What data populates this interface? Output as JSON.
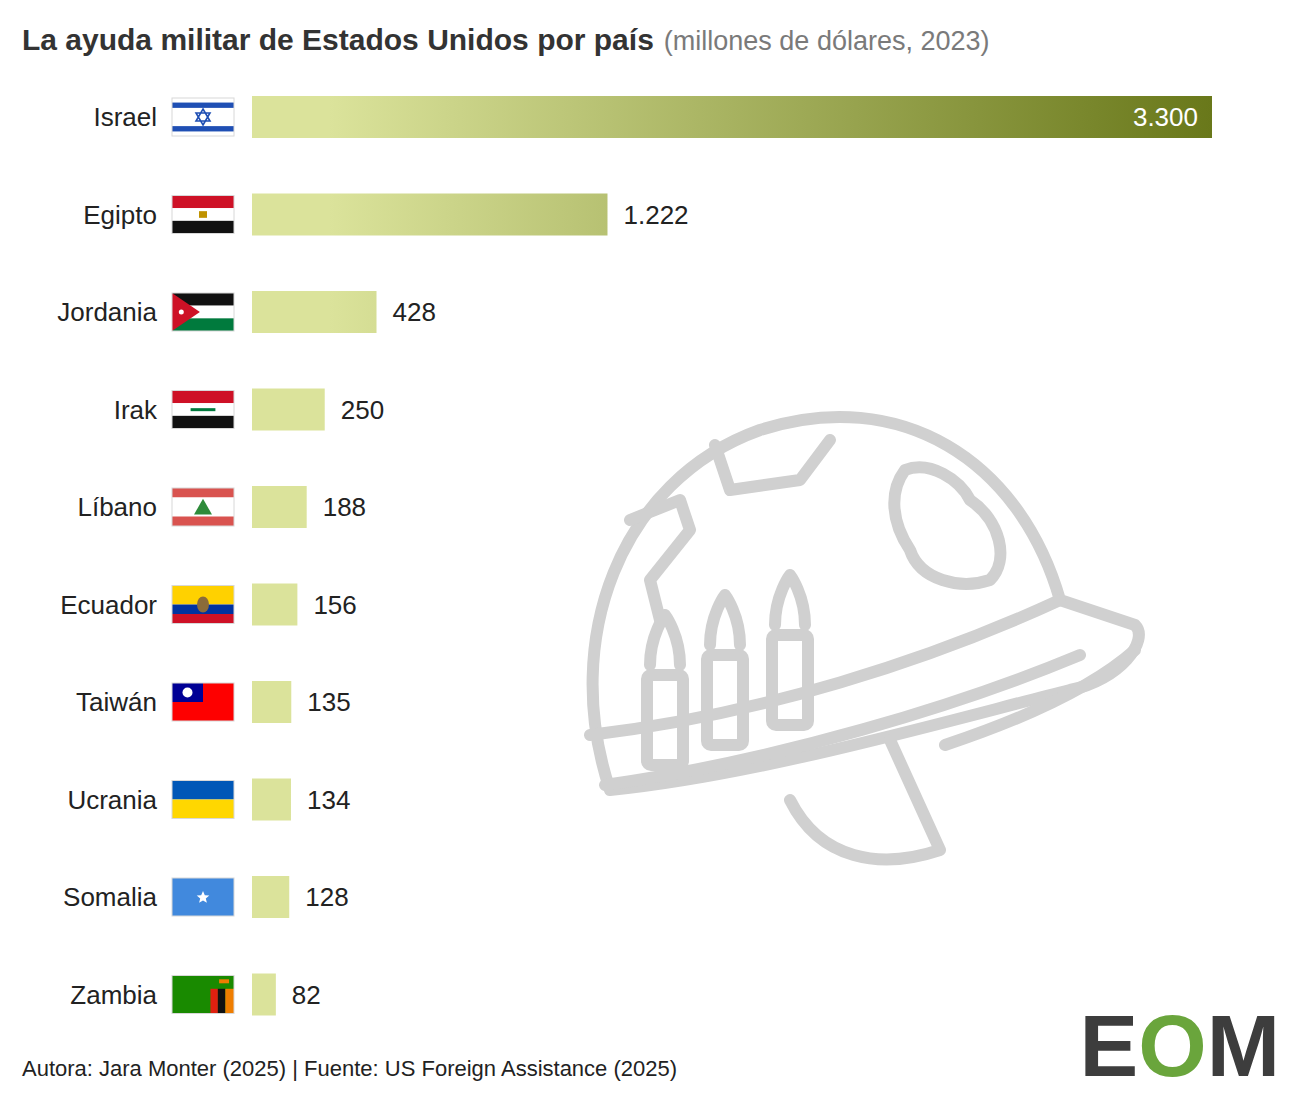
{
  "chart_data": {
    "type": "bar",
    "orientation": "horizontal",
    "title": "La ayuda militar de Estados Unidos por país",
    "subtitle": "(millones de dólares, 2023)",
    "categories": [
      "Israel",
      "Egipto",
      "Jordania",
      "Irak",
      "Líbano",
      "Ecuador",
      "Taiwán",
      "Ucrania",
      "Somalia",
      "Zambia"
    ],
    "values": [
      3300,
      1222,
      428,
      250,
      188,
      156,
      135,
      134,
      128,
      82
    ],
    "value_labels": [
      "3.300",
      "1.222",
      "428",
      "250",
      "188",
      "156",
      "135",
      "134",
      "128",
      "82"
    ],
    "data_labels": true,
    "tick_labels": "y",
    "xlim": [
      0,
      3300
    ],
    "color": "#dbe39b",
    "source": "Autora: Jara Monter (2025) | Fuente: US Foreign Assistance (2025)",
    "logo": "EOM"
  }
}
